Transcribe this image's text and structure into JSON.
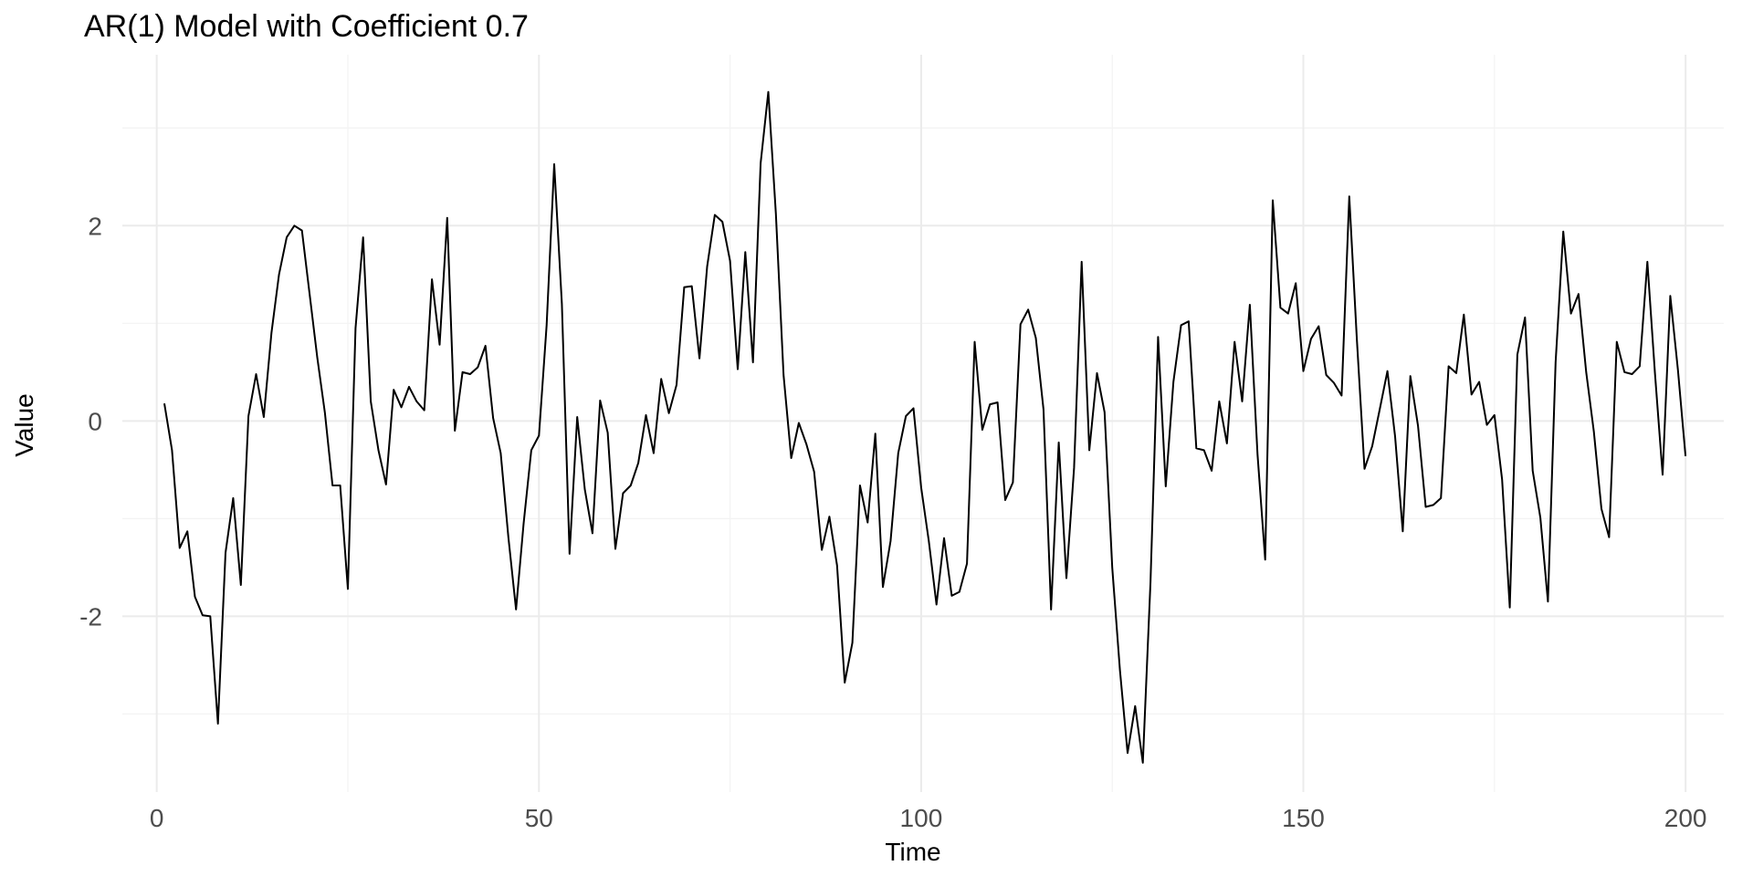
{
  "chart_data": {
    "type": "line",
    "title": "AR(1) Model with Coefficient 0.7",
    "xlabel": "Time",
    "ylabel": "Value",
    "xlim": [
      -4.5,
      205
    ],
    "ylim": [
      -3.8,
      3.75
    ],
    "x_ticks": [
      0,
      50,
      100,
      150,
      200
    ],
    "x_tick_labels": [
      "0",
      "50",
      "100",
      "150",
      "200"
    ],
    "y_ticks": [
      -2,
      0,
      2
    ],
    "y_tick_labels": [
      "-2",
      "0",
      "2"
    ],
    "x_minor_ticks": [
      25,
      75,
      125,
      175
    ],
    "y_minor_ticks": [
      -3,
      -1,
      1,
      3
    ],
    "grid": true,
    "legend": "none",
    "line_color": "#000000",
    "series": [
      {
        "x": [
          1,
          2,
          3,
          4,
          5,
          6,
          7,
          8,
          9,
          10,
          11,
          12,
          13,
          14,
          15,
          16,
          17,
          18,
          19,
          20,
          21,
          22,
          23,
          24,
          25,
          26,
          27,
          28,
          29,
          30,
          31,
          32,
          33,
          34,
          35,
          36,
          37,
          38,
          39,
          40,
          41,
          42,
          43,
          44,
          45,
          46,
          47,
          48,
          49,
          50,
          51,
          52,
          53,
          54,
          55,
          56,
          57,
          58,
          59,
          60,
          61,
          62,
          63,
          64,
          65,
          66,
          67,
          68,
          69,
          70,
          71,
          72,
          73,
          74,
          75,
          76,
          77,
          78,
          79,
          80,
          81,
          82,
          83,
          84,
          85,
          86,
          87,
          88,
          89,
          90,
          91,
          92,
          93,
          94,
          95,
          96,
          97,
          98,
          99,
          100,
          101,
          102,
          103,
          104,
          105,
          106,
          107,
          108,
          109,
          110,
          111,
          112,
          113,
          114,
          115,
          116,
          117,
          118,
          119,
          120,
          121,
          122,
          123,
          124,
          125,
          126,
          127,
          128,
          129,
          130,
          131,
          132,
          133,
          134,
          135,
          136,
          137,
          138,
          139,
          140,
          141,
          142,
          143,
          144,
          145,
          146,
          147,
          148,
          149,
          150,
          151,
          152,
          153,
          154,
          155,
          156,
          157,
          158,
          159,
          160,
          161,
          162,
          163,
          164,
          165,
          166,
          167,
          168,
          169,
          170,
          171,
          172,
          173,
          174,
          175,
          176,
          177,
          178,
          179,
          180,
          181,
          182,
          183,
          184,
          185,
          186,
          187,
          188,
          189,
          190,
          191,
          192,
          193,
          194,
          195,
          196,
          197,
          198,
          199,
          200
        ],
        "values": [
          0.18,
          -0.3,
          -1.3,
          -1.13,
          -1.8,
          -1.99,
          -2.0,
          -3.1,
          -1.35,
          -0.79,
          -1.68,
          0.05,
          0.48,
          0.04,
          0.9,
          1.5,
          1.88,
          2.0,
          1.95,
          1.3,
          0.65,
          0.08,
          -0.66,
          -0.66,
          -1.72,
          0.95,
          1.88,
          0.2,
          -0.3,
          -0.65,
          0.32,
          0.14,
          0.35,
          0.2,
          0.11,
          1.45,
          0.78,
          2.08,
          -0.1,
          0.5,
          0.48,
          0.55,
          0.77,
          0.03,
          -0.33,
          -1.19,
          -1.93,
          -1.05,
          -0.3,
          -0.15,
          0.98,
          2.63,
          1.2,
          -1.36,
          0.04,
          -0.7,
          -1.15,
          0.21,
          -0.12,
          -1.31,
          -0.74,
          -0.66,
          -0.43,
          0.06,
          -0.33,
          0.43,
          0.08,
          0.37,
          1.37,
          1.38,
          0.64,
          1.58,
          2.11,
          2.04,
          1.64,
          0.53,
          1.73,
          0.6,
          2.64,
          3.37,
          2.12,
          0.47,
          -0.38,
          -0.02,
          -0.24,
          -0.52,
          -1.32,
          -0.98,
          -1.48,
          -2.68,
          -2.27,
          -0.66,
          -1.04,
          -0.13,
          -1.7,
          -1.23,
          -0.33,
          0.05,
          0.13,
          -0.68,
          -1.23,
          -1.88,
          -1.2,
          -1.79,
          -1.75,
          -1.46,
          0.81,
          -0.09,
          0.17,
          0.19,
          -0.81,
          -0.63,
          0.99,
          1.14,
          0.85,
          0.12,
          -1.93,
          -0.22,
          -1.61,
          -0.48,
          1.63,
          -0.3,
          0.49,
          0.09,
          -1.5,
          -2.55,
          -3.4,
          -2.92,
          -3.5,
          -1.65,
          0.86,
          -0.67,
          0.4,
          0.98,
          1.02,
          -0.28,
          -0.3,
          -0.51,
          0.2,
          -0.23,
          0.81,
          0.2,
          1.19,
          -0.34,
          -1.42,
          2.26,
          1.16,
          1.1,
          1.41,
          0.51,
          0.84,
          0.97,
          0.47,
          0.39,
          0.26,
          2.3,
          0.84,
          -0.49,
          -0.26,
          0.12,
          0.51,
          -0.16,
          -1.13,
          0.46,
          -0.05,
          -0.88,
          -0.86,
          -0.79,
          0.56,
          0.49,
          1.09,
          0.27,
          0.4,
          -0.04,
          0.06,
          -0.6,
          -1.91,
          0.68,
          1.06,
          -0.51,
          -0.99,
          -1.85,
          0.6,
          1.94,
          1.1,
          1.3,
          0.5,
          -0.11,
          -0.9,
          -1.19,
          0.81,
          0.5,
          0.48,
          0.56,
          1.63,
          0.49,
          -0.55,
          1.28,
          0.52,
          -0.36
        ]
      }
    ]
  }
}
